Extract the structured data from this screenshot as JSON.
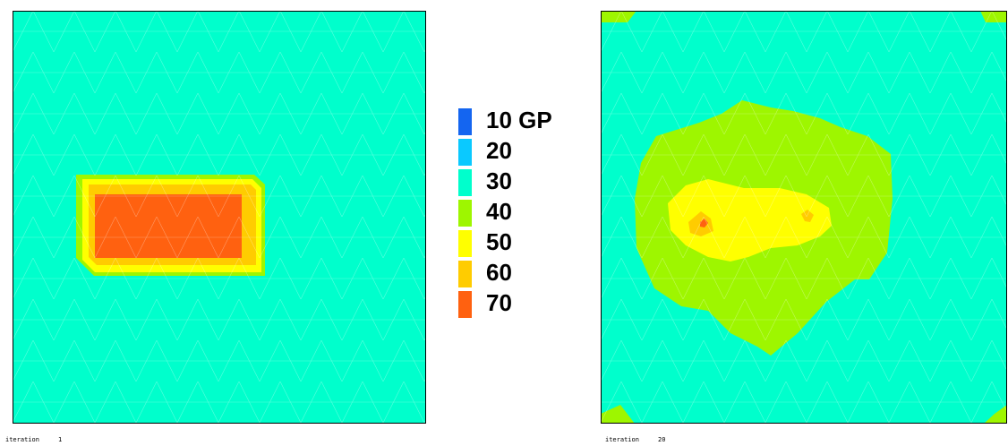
{
  "legend": {
    "items": [
      {
        "label": "10 GP",
        "color": "#1465f0"
      },
      {
        "label": "20",
        "color": "#0ac9ff"
      },
      {
        "label": "30",
        "color": "#00ffcc"
      },
      {
        "label": "40",
        "color": "#9ef600"
      },
      {
        "label": "50",
        "color": "#ffff00"
      },
      {
        "label": "60",
        "color": "#ffcc00"
      },
      {
        "label": "70",
        "color": "#ff6110"
      }
    ]
  },
  "plots": [
    {
      "caption": "iteration     1",
      "background_color": "#00ffcc"
    },
    {
      "caption": "iteration     20",
      "background_color": "#00ffcc"
    }
  ]
}
